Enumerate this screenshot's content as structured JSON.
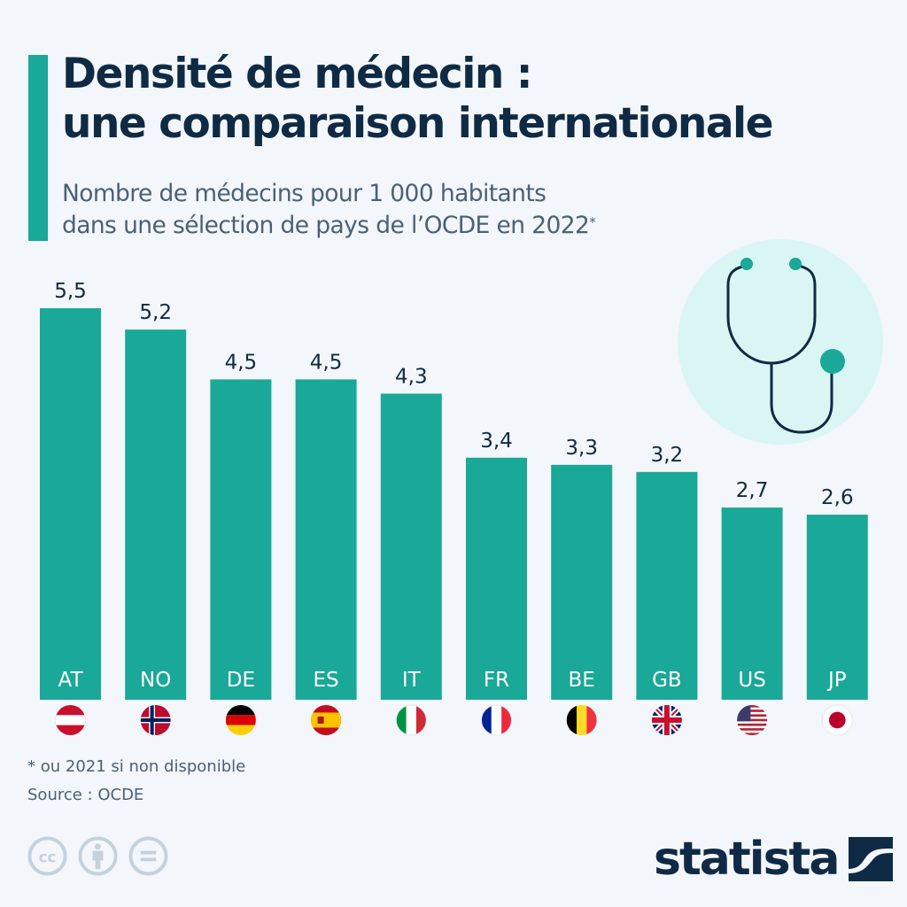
{
  "header": {
    "title_line1": "Densité de médecin :",
    "title_line2": "une comparaison internationale",
    "subtitle_line1": "Nombre de médecins pour 1 000 habitants",
    "subtitle_line2": "dans une sélection de pays de l’OCDE en 2022",
    "subtitle_mark": "*"
  },
  "illustration": {
    "icon": "stethoscope-icon"
  },
  "colors": {
    "background": "#f3f6fa",
    "bar": "#1aa898",
    "value_label": "#0f2a44",
    "category_label": "#ffffff",
    "title": "#0f2a44",
    "subtitle": "#4a6178",
    "illustration_bg": "#d9f6f5"
  },
  "chart_data": {
    "type": "bar",
    "title": "Densité de médecin : une comparaison internationale",
    "subtitle": "Nombre de médecins pour 1 000 habitants dans une sélection de pays de l’OCDE en 2022*",
    "xlabel": "",
    "ylabel": "Médecins pour 1 000 habitants",
    "categories": [
      "AT",
      "NO",
      "DE",
      "ES",
      "IT",
      "FR",
      "BE",
      "GB",
      "US",
      "JP"
    ],
    "values": [
      5.5,
      5.2,
      4.5,
      4.5,
      4.3,
      3.4,
      3.3,
      3.2,
      2.7,
      2.6
    ],
    "value_labels": [
      "5,5",
      "5,2",
      "4,5",
      "4,5",
      "4,3",
      "3,4",
      "3,3",
      "3,2",
      "2,7",
      "2,6"
    ],
    "flags": [
      "flag-austria",
      "flag-norway",
      "flag-germany",
      "flag-spain",
      "flag-italy",
      "flag-france",
      "flag-belgium",
      "flag-united-kingdom",
      "flag-united-states",
      "flag-japan"
    ],
    "ylim": [
      0,
      5.5
    ],
    "grid": false,
    "legend": "none"
  },
  "footer": {
    "note": "* ou 2021 si non disponible",
    "source": "Source : OCDE",
    "license_icons": [
      "cc-icon",
      "attribution-icon",
      "no-derivatives-icon"
    ],
    "brand": "statista"
  }
}
